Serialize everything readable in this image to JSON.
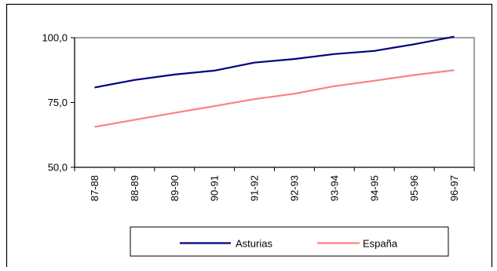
{
  "chart_data": {
    "type": "line",
    "title": "",
    "xlabel": "",
    "ylabel": "",
    "categories": [
      "87-88",
      "88-89",
      "89-90",
      "90-91",
      "91-92",
      "92-93",
      "93-94",
      "94-95",
      "95-96",
      "96-97"
    ],
    "ylim": [
      50,
      100
    ],
    "yticks": [
      50,
      75,
      100
    ],
    "ytick_labels": [
      "50,0",
      "75,0",
      "100,0"
    ],
    "grid": false,
    "legend_position": "bottom",
    "series": [
      {
        "name": "Asturias",
        "color": "#000080",
        "values": [
          80.8,
          83.7,
          85.8,
          87.3,
          90.4,
          91.8,
          93.7,
          94.9,
          97.5,
          100.4
        ]
      },
      {
        "name": "España",
        "color": "#FF8080",
        "values": [
          65.6,
          68.3,
          71.0,
          73.6,
          76.3,
          78.4,
          81.3,
          83.4,
          85.6,
          87.5
        ]
      }
    ]
  }
}
